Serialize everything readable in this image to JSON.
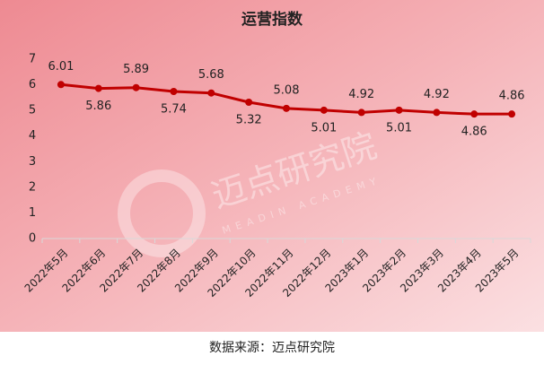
{
  "chart_data": {
    "type": "line",
    "title": "运营指数",
    "categories": [
      "2022年5月",
      "2022年6月",
      "2022年7月",
      "2022年8月",
      "2022年9月",
      "2022年10月",
      "2022年11月",
      "2022年12月",
      "2023年1月",
      "2023年2月",
      "2023年3月",
      "2023年4月",
      "2023年5月"
    ],
    "series": [
      {
        "name": "运营指数",
        "color": "#c00000",
        "values": [
          6.01,
          5.86,
          5.89,
          5.74,
          5.68,
          5.32,
          5.08,
          5.01,
          4.92,
          5.01,
          4.92,
          4.86,
          4.86
        ]
      }
    ],
    "ylim": [
      0,
      7
    ],
    "yticks": [
      0,
      1,
      2,
      3,
      4,
      5,
      6,
      7
    ],
    "grid": false,
    "watermark": "迈点研究院",
    "watermark_sub": "MEADIN ACADEMY"
  },
  "source": "数据来源：迈点研究院"
}
